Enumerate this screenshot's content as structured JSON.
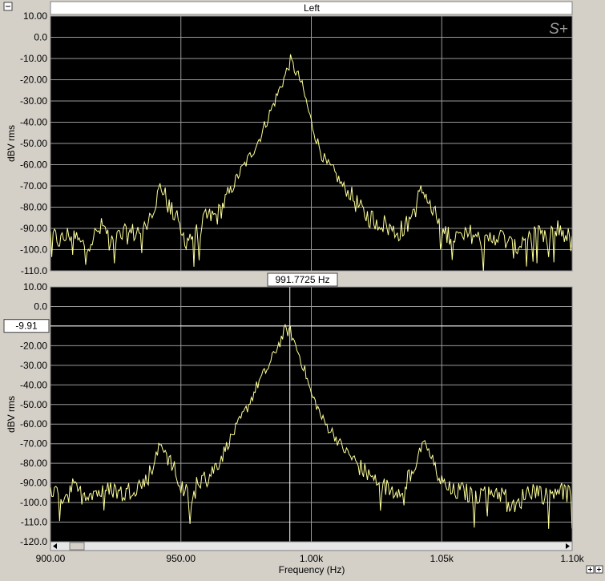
{
  "window": {
    "title": "Left",
    "logo_text": "S+"
  },
  "cursor": {
    "frequency_readout": "991.7725 Hz",
    "level_readout": "-9.91"
  },
  "colors": {
    "background": "#d4d0c8",
    "plot_bg": "#000000",
    "grid": "#a0a0a0",
    "trace": "#ffff99",
    "cursor": "#ffffff"
  },
  "icons": {
    "collapse": "minus-box-icon",
    "zoom_in": "plus-box-icon",
    "zoom_out": "plus-box-icon",
    "scroll_left": "triangle-left-icon",
    "scroll_right": "triangle-right-icon"
  },
  "chart_data": [
    {
      "type": "line",
      "ylabel": "dBV rms",
      "xlabel": "",
      "xlim": [
        900,
        1100
      ],
      "ylim": [
        -110,
        10
      ],
      "yticks": [
        "10.00",
        "0.0",
        "-10.00",
        "-20.00",
        "-30.00",
        "-40.00",
        "-50.00",
        "-60.00",
        "-70.00",
        "-80.00",
        "-90.00",
        "-100.0",
        "-110.0"
      ],
      "grid": true,
      "series": [
        {
          "x": [
            900,
            904,
            908,
            912,
            916,
            920,
            924,
            928,
            932,
            936,
            940,
            942,
            944,
            946,
            948,
            950,
            952,
            956,
            960,
            964,
            968,
            972,
            976,
            980,
            984,
            986,
            988,
            990,
            992,
            994,
            996,
            998,
            1000,
            1002,
            1004,
            1006,
            1008,
            1012,
            1016,
            1020,
            1024,
            1028,
            1032,
            1036,
            1040,
            1042,
            1044,
            1046,
            1048,
            1050,
            1054,
            1058,
            1062,
            1066,
            1070,
            1074,
            1078,
            1082,
            1086,
            1090,
            1094,
            1098,
            1100
          ],
          "y": [
            -93,
            -96,
            -92,
            -98,
            -95,
            -89,
            -96,
            -93,
            -92,
            -90,
            -78,
            -70,
            -75,
            -82,
            -84,
            -93,
            -95,
            -92,
            -85,
            -84,
            -75,
            -65,
            -57,
            -48,
            -36,
            -30,
            -24,
            -18,
            -11,
            -16,
            -21,
            -30,
            -40,
            -48,
            -55,
            -60,
            -62,
            -70,
            -76,
            -83,
            -86,
            -88,
            -92,
            -90,
            -80,
            -72,
            -74,
            -82,
            -85,
            -92,
            -93,
            -95,
            -92,
            -98,
            -93,
            -95,
            -100,
            -94,
            -92,
            -96,
            -90,
            -93,
            -98
          ]
        }
      ]
    },
    {
      "type": "line",
      "ylabel": "dBV rms",
      "xlabel": "Frequency (Hz)",
      "xlim": [
        900,
        1100
      ],
      "ylim": [
        -120,
        10
      ],
      "yticks": [
        "10.00",
        "0.0",
        "-10.00",
        "-20.00",
        "-30.00",
        "-40.00",
        "-50.00",
        "-60.00",
        "-70.00",
        "-80.00",
        "-90.00",
        "-100.0",
        "-110.0",
        "-120.0"
      ],
      "xticks": [
        {
          "value": 900,
          "label": "900.00"
        },
        {
          "value": 950,
          "label": "950.00"
        },
        {
          "value": 1000,
          "label": "1.00k"
        },
        {
          "value": 1050,
          "label": "1.05k"
        },
        {
          "value": 1100,
          "label": "1.10k"
        }
      ],
      "grid": true,
      "cursor_x": 991.7725,
      "cursor_y": -9.91,
      "series": [
        {
          "x": [
            900,
            904,
            908,
            912,
            916,
            920,
            924,
            928,
            932,
            936,
            940,
            942,
            944,
            946,
            948,
            950,
            952,
            954,
            956,
            960,
            964,
            968,
            972,
            976,
            980,
            984,
            986,
            988,
            990,
            992,
            994,
            996,
            998,
            1000,
            1002,
            1004,
            1006,
            1008,
            1012,
            1016,
            1020,
            1024,
            1028,
            1032,
            1036,
            1040,
            1042,
            1044,
            1046,
            1048,
            1050,
            1054,
            1058,
            1062,
            1066,
            1070,
            1074,
            1078,
            1082,
            1086,
            1090,
            1094,
            1098,
            1100
          ],
          "y": [
            -95,
            -97,
            -92,
            -96,
            -94,
            -95,
            -93,
            -96,
            -92,
            -90,
            -80,
            -70,
            -73,
            -80,
            -85,
            -92,
            -95,
            -103,
            -90,
            -88,
            -80,
            -70,
            -60,
            -50,
            -38,
            -30,
            -23,
            -18,
            -12,
            -13,
            -20,
            -27,
            -35,
            -45,
            -50,
            -57,
            -61,
            -64,
            -72,
            -78,
            -84,
            -88,
            -92,
            -94,
            -90,
            -80,
            -73,
            -70,
            -78,
            -84,
            -90,
            -95,
            -94,
            -97,
            -95,
            -94,
            -96,
            -104,
            -95,
            -93,
            -97,
            -92,
            -95,
            -97
          ]
        }
      ]
    }
  ]
}
